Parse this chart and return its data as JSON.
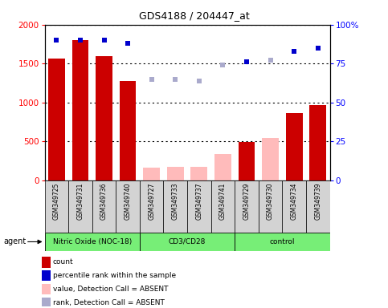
{
  "title": "GDS4188 / 204447_at",
  "samples": [
    "GSM349725",
    "GSM349731",
    "GSM349736",
    "GSM349740",
    "GSM349727",
    "GSM349733",
    "GSM349737",
    "GSM349741",
    "GSM349729",
    "GSM349730",
    "GSM349734",
    "GSM349739"
  ],
  "groups": [
    {
      "name": "Nitric Oxide (NOC-18)",
      "start": 0,
      "end": 3,
      "color": "#77ee77"
    },
    {
      "name": "CD3/CD28",
      "start": 4,
      "end": 7,
      "color": "#77ee77"
    },
    {
      "name": "control",
      "start": 8,
      "end": 11,
      "color": "#77ee77"
    }
  ],
  "bar_values": [
    1560,
    1800,
    1600,
    1280,
    null,
    null,
    null,
    null,
    490,
    null,
    860,
    970
  ],
  "bar_absent": [
    null,
    null,
    null,
    null,
    160,
    175,
    175,
    340,
    null,
    540,
    null,
    null
  ],
  "rank_present": [
    90,
    90,
    90,
    88,
    null,
    null,
    null,
    null,
    76,
    null,
    83,
    85
  ],
  "rank_absent": [
    null,
    null,
    null,
    null,
    65,
    65,
    64,
    74,
    null,
    77,
    null,
    null
  ],
  "ylim_left": [
    0,
    2000
  ],
  "ylim_right": [
    0,
    100
  ],
  "yticks_left": [
    0,
    500,
    1000,
    1500,
    2000
  ],
  "yticks_right": [
    0,
    25,
    50,
    75,
    100
  ],
  "bar_color_present": "#cc0000",
  "bar_color_absent": "#ffbbbb",
  "rank_color_present": "#0000cc",
  "rank_color_absent": "#aaaacc",
  "legend_items": [
    {
      "label": "count",
      "color": "#cc0000",
      "type": "square"
    },
    {
      "label": "percentile rank within the sample",
      "color": "#0000cc",
      "type": "square"
    },
    {
      "label": "value, Detection Call = ABSENT",
      "color": "#ffbbbb",
      "type": "square"
    },
    {
      "label": "rank, Detection Call = ABSENT",
      "color": "#aaaacc",
      "type": "square"
    }
  ],
  "agent_label": "agent",
  "grid_style": "dotted",
  "fig_width": 4.83,
  "fig_height": 3.84,
  "fig_dpi": 100
}
